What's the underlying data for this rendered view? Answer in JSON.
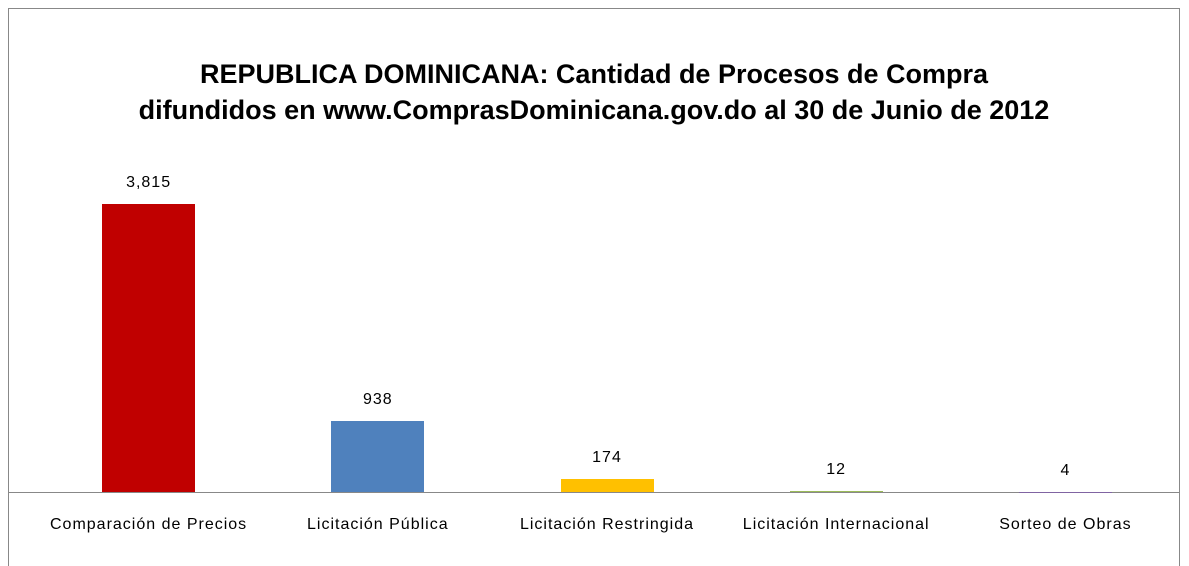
{
  "chart_data": {
    "type": "bar",
    "title": "REPUBLICA DOMINICANA: Cantidad de Procesos de Compra difundidos en www.ComprasDominicana.gov.do al 30 de Junio de 2012",
    "categories": [
      "Comparación de Precios",
      "Licitación Pública",
      "Licitación Restringida",
      "Licitación Internacional",
      "Sorteo de Obras"
    ],
    "values": [
      3815,
      938,
      174,
      12,
      4
    ],
    "value_labels": [
      "3,815",
      "938",
      "174",
      "12",
      "4"
    ],
    "colors": [
      "#c00000",
      "#4f81bd",
      "#ffc000",
      "#9bbb59",
      "#8064a2"
    ]
  }
}
